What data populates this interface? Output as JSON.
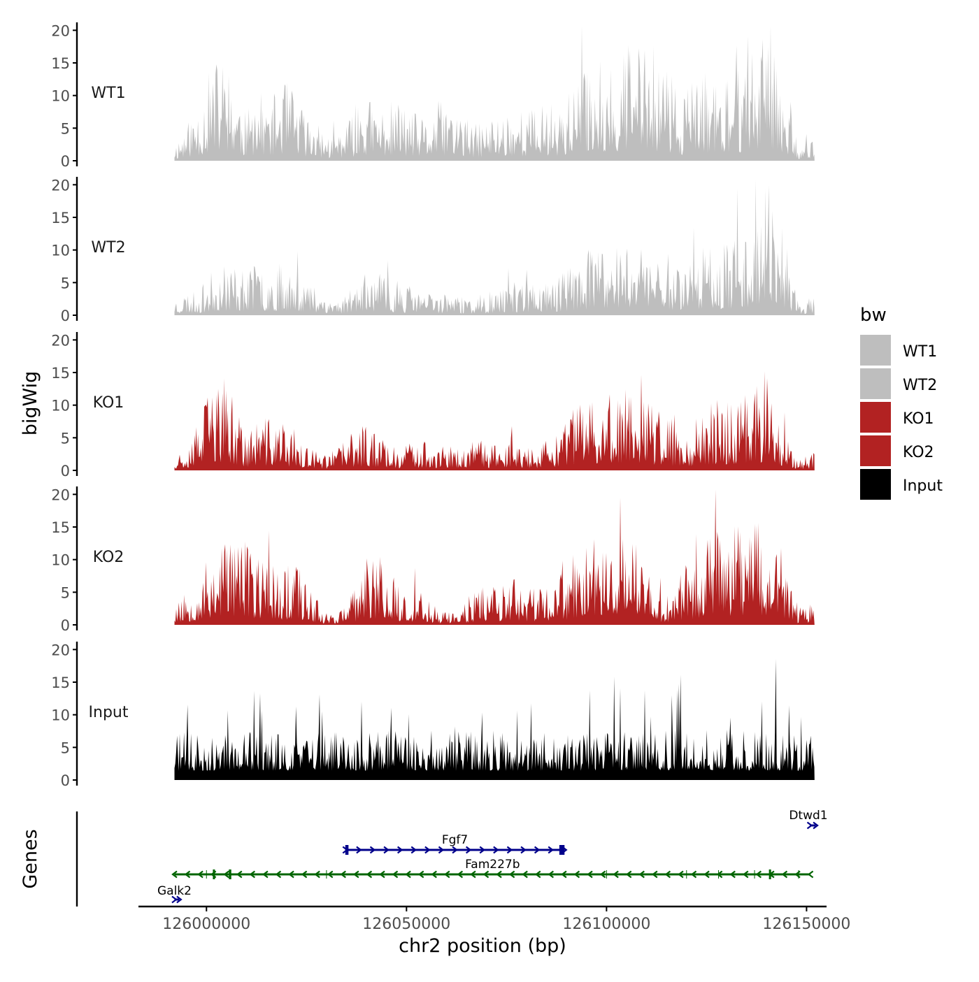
{
  "chart_data": {
    "type": "area",
    "ylabel": "bigWig",
    "xlabel": "chr2 position (bp)",
    "genes_label": "Genes",
    "ylim": [
      0,
      21
    ],
    "y_ticks": [
      0,
      5,
      10,
      15,
      20
    ],
    "x_range": [
      125983000,
      126155000
    ],
    "x_ticks": [
      126000000,
      126050000,
      126100000,
      126150000
    ],
    "signal_range": [
      125992000,
      126152000
    ],
    "legend": {
      "title": "bw",
      "position": "right",
      "entries": [
        {
          "label": "WT1",
          "color": "#bebebe"
        },
        {
          "label": "WT2",
          "color": "#bebebe"
        },
        {
          "label": "KO1",
          "color": "#b22222"
        },
        {
          "label": "KO2",
          "color": "#b22222"
        },
        {
          "label": "Input",
          "color": "#000000"
        }
      ]
    },
    "tracks": [
      {
        "name": "WT1",
        "color": "#bebebe",
        "seed": 11,
        "profile_x": [
          125992000,
          125995000,
          125998000,
          126001000,
          126004000,
          126007000,
          126010000,
          126013000,
          126016000,
          126019000,
          126022000,
          126025000,
          126028000,
          126031000,
          126034000,
          126037000,
          126040000,
          126043000,
          126046000,
          126049000,
          126052000,
          126055000,
          126058000,
          126061000,
          126064000,
          126067000,
          126070000,
          126073000,
          126076000,
          126079000,
          126082000,
          126085000,
          126088000,
          126091000,
          126094000,
          126097000,
          126100000,
          126103000,
          126106000,
          126109000,
          126112000,
          126115000,
          126118000,
          126121000,
          126124000,
          126127000,
          126130000,
          126133000,
          126136000,
          126139000,
          126142000,
          126145000,
          126148000,
          126151000,
          126152000
        ],
        "profile_y": [
          1.5,
          3.0,
          5.0,
          8.0,
          9.0,
          7.0,
          4.0,
          6.0,
          5.0,
          7.0,
          6.0,
          4.0,
          3.0,
          2.0,
          3.0,
          4.0,
          5.5,
          4.5,
          5.0,
          5.0,
          4.0,
          3.5,
          5.0,
          5.0,
          4.0,
          3.0,
          3.5,
          4.0,
          4.5,
          4.5,
          4.5,
          5.0,
          5.0,
          6.0,
          7.5,
          9.0,
          8.0,
          9.5,
          10.0,
          10.5,
          9.5,
          8.0,
          6.5,
          5.0,
          7.5,
          7.0,
          6.5,
          8.0,
          10.0,
          12.0,
          11.0,
          7.0,
          1.5,
          2.0,
          2.0
        ]
      },
      {
        "name": "WT2",
        "color": "#bebebe",
        "seed": 23,
        "profile_x": [
          125992000,
          125995000,
          125998000,
          126001000,
          126004000,
          126007000,
          126010000,
          126013000,
          126016000,
          126019000,
          126022000,
          126025000,
          126028000,
          126031000,
          126034000,
          126037000,
          126040000,
          126043000,
          126046000,
          126049000,
          126052000,
          126055000,
          126058000,
          126061000,
          126064000,
          126067000,
          126070000,
          126073000,
          126076000,
          126079000,
          126082000,
          126085000,
          126088000,
          126091000,
          126094000,
          126097000,
          126100000,
          126103000,
          126106000,
          126109000,
          126112000,
          126115000,
          126118000,
          126121000,
          126124000,
          126127000,
          126130000,
          126133000,
          126136000,
          126139000,
          126142000,
          126145000,
          126148000,
          126151000,
          126152000
        ],
        "profile_y": [
          1.5,
          2.0,
          2.0,
          3.5,
          4.5,
          4.5,
          4.0,
          4.5,
          4.0,
          4.5,
          4.0,
          3.0,
          2.5,
          1.5,
          1.5,
          3.0,
          3.5,
          3.5,
          3.0,
          2.5,
          2.5,
          2.0,
          2.0,
          2.0,
          1.5,
          1.5,
          2.0,
          2.0,
          2.5,
          3.0,
          3.0,
          3.0,
          3.5,
          4.5,
          5.0,
          6.0,
          5.0,
          7.0,
          7.0,
          6.5,
          6.0,
          5.5,
          5.0,
          5.5,
          6.0,
          6.5,
          6.0,
          7.0,
          8.5,
          11.0,
          9.5,
          6.0,
          1.0,
          1.5,
          1.5
        ]
      },
      {
        "name": "KO1",
        "color": "#b22222",
        "seed": 37,
        "profile_x": [
          125992000,
          125995000,
          125998000,
          126001000,
          126004000,
          126007000,
          126010000,
          126013000,
          126016000,
          126019000,
          126022000,
          126025000,
          126028000,
          126031000,
          126034000,
          126037000,
          126040000,
          126043000,
          126046000,
          126049000,
          126052000,
          126055000,
          126058000,
          126061000,
          126064000,
          126067000,
          126070000,
          126073000,
          126076000,
          126079000,
          126082000,
          126085000,
          126088000,
          126091000,
          126094000,
          126097000,
          126100000,
          126103000,
          126106000,
          126109000,
          126112000,
          126115000,
          126118000,
          126121000,
          126124000,
          126127000,
          126130000,
          126133000,
          126136000,
          126139000,
          126142000,
          126145000,
          126148000,
          126151000,
          126152000
        ],
        "profile_y": [
          1.5,
          2.5,
          4.0,
          7.5,
          8.0,
          6.0,
          3.0,
          4.5,
          4.5,
          4.0,
          3.5,
          2.0,
          1.5,
          1.5,
          2.5,
          3.5,
          4.0,
          3.0,
          2.5,
          2.0,
          2.5,
          2.5,
          2.0,
          2.0,
          2.0,
          2.5,
          2.5,
          2.5,
          2.5,
          2.0,
          2.0,
          2.5,
          3.0,
          5.0,
          6.0,
          6.5,
          6.5,
          7.0,
          7.5,
          6.5,
          5.5,
          4.5,
          4.0,
          4.0,
          5.5,
          6.0,
          6.0,
          6.0,
          7.0,
          7.5,
          6.0,
          3.0,
          1.0,
          1.5,
          1.5
        ]
      },
      {
        "name": "KO2",
        "color": "#b22222",
        "seed": 53,
        "profile_x": [
          125992000,
          125995000,
          125998000,
          126001000,
          126004000,
          126007000,
          126010000,
          126013000,
          126016000,
          126019000,
          126022000,
          126025000,
          126028000,
          126031000,
          126034000,
          126037000,
          126040000,
          126043000,
          126046000,
          126049000,
          126052000,
          126055000,
          126058000,
          126061000,
          126064000,
          126067000,
          126070000,
          126073000,
          126076000,
          126079000,
          126082000,
          126085000,
          126088000,
          126091000,
          126094000,
          126097000,
          126100000,
          126103000,
          126106000,
          126109000,
          126112000,
          126115000,
          126118000,
          126121000,
          126124000,
          126127000,
          126130000,
          126133000,
          126136000,
          126139000,
          126142000,
          126145000,
          126148000,
          126151000,
          126152000
        ],
        "profile_y": [
          2.0,
          3.0,
          4.0,
          6.0,
          8.0,
          8.5,
          7.0,
          6.0,
          5.5,
          5.0,
          5.5,
          4.5,
          2.0,
          1.0,
          1.5,
          3.0,
          5.5,
          6.0,
          4.5,
          3.5,
          3.0,
          2.5,
          1.5,
          1.0,
          1.5,
          3.0,
          4.0,
          3.5,
          4.0,
          3.5,
          3.5,
          3.0,
          4.0,
          5.5,
          7.0,
          8.0,
          8.0,
          9.0,
          8.0,
          6.0,
          4.0,
          1.5,
          3.5,
          6.0,
          7.0,
          8.0,
          8.5,
          8.5,
          9.0,
          9.5,
          8.0,
          5.0,
          1.5,
          2.0,
          2.0
        ]
      },
      {
        "name": "Input",
        "color": "#000000",
        "seed": 71,
        "profile_x": [
          125992000,
          126010000,
          126030000,
          126050000,
          126070000,
          126090000,
          126110000,
          126130000,
          126152000
        ],
        "profile_y": [
          4.0,
          4.2,
          4.0,
          4.2,
          4.0,
          4.0,
          4.3,
          4.3,
          4.0
        ]
      }
    ],
    "genes": [
      {
        "name": "Fgf7",
        "strand": "+",
        "start": 126034700,
        "end": 126089500,
        "row": 2,
        "color": "#00008b",
        "exons": [
          [
            126034700,
            126035500
          ],
          [
            126088200,
            126089500
          ]
        ]
      },
      {
        "name": "Fam227b",
        "strand": "-",
        "start": 125992000,
        "end": 126151000,
        "row": 3,
        "color": "#006400",
        "exons": [
          [
            126001600,
            126002000
          ],
          [
            126005600,
            126006200
          ],
          [
            126140600,
            126140900
          ]
        ]
      },
      {
        "name": "Galk2",
        "strand": "+",
        "start": 125992000,
        "end": 125993200,
        "row": 4,
        "color": "#00008b",
        "exons": []
      },
      {
        "name": "Dtwd1",
        "strand": "+",
        "start": 126150800,
        "end": 126152300,
        "row": 1,
        "color": "#00008b",
        "exons": []
      }
    ]
  }
}
